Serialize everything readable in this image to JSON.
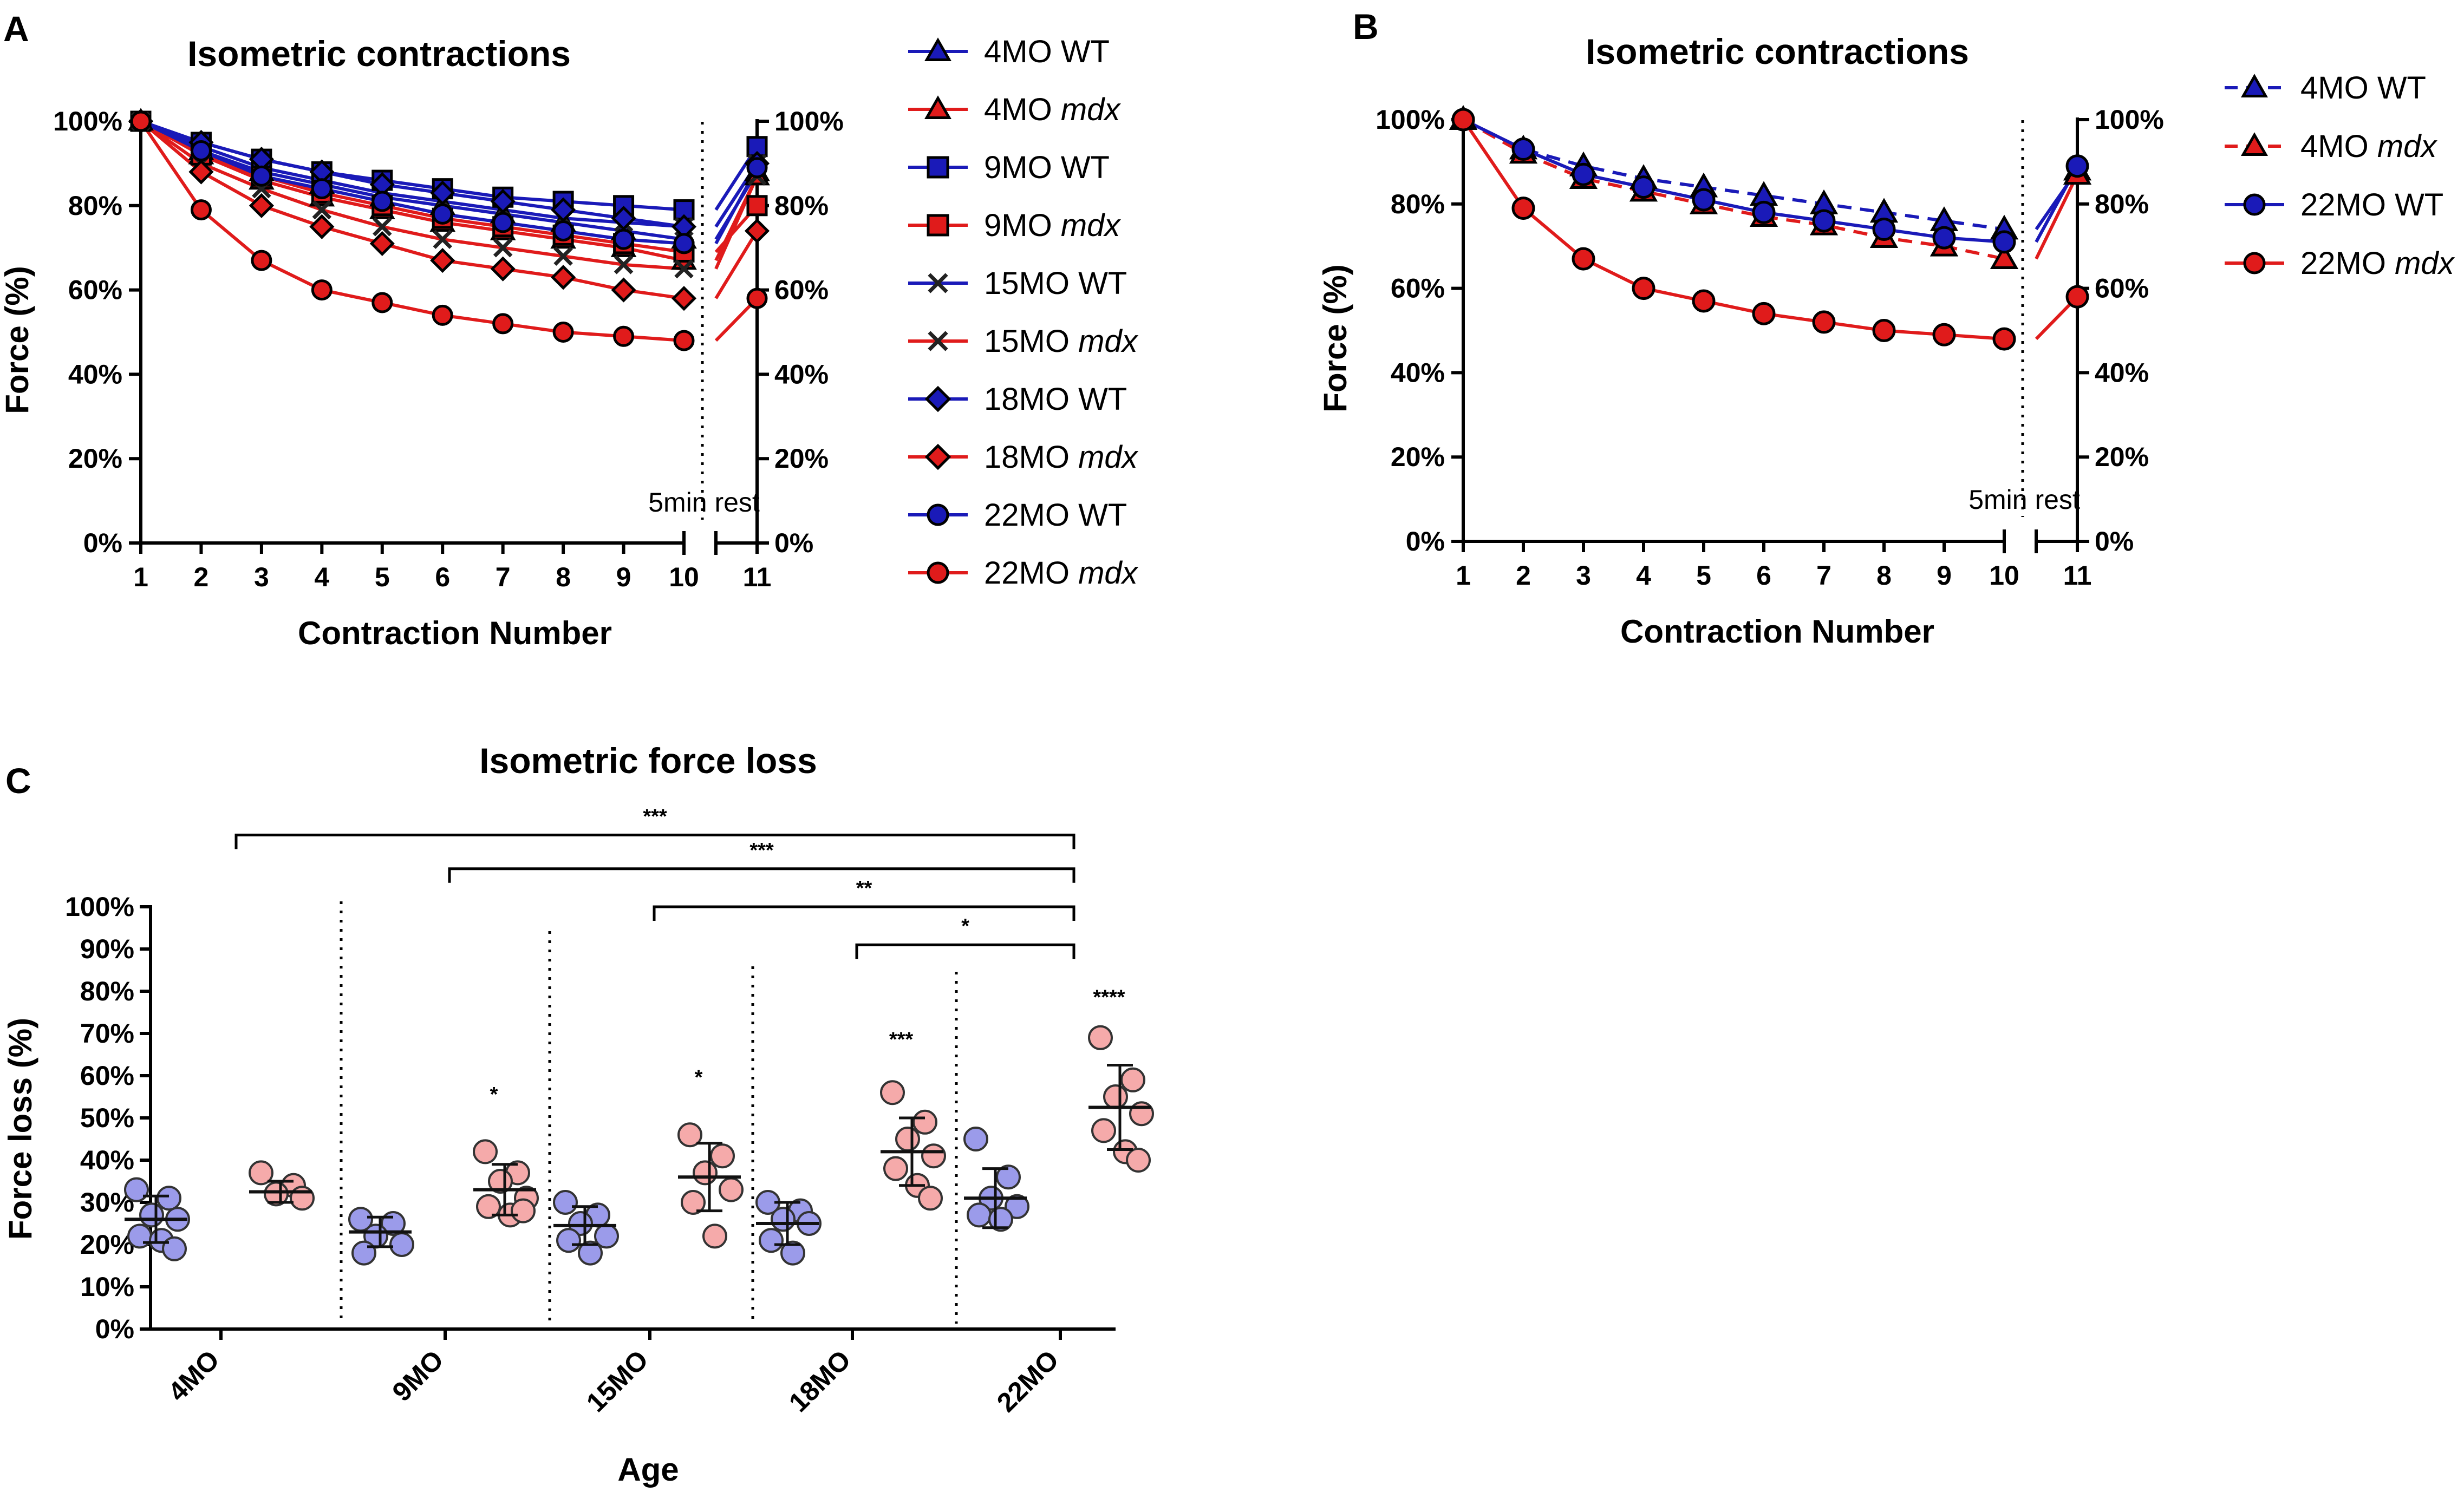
{
  "colors": {
    "wt": "#1a1ab8",
    "mdx": "#e01b1b",
    "wt_point_c": "#9b9bea",
    "mdx_point_c": "#f5aaaa"
  },
  "panel_a": {
    "label": "A",
    "rest_label": "5min rest",
    "legend": [
      {
        "prefix": "4MO ",
        "suffix": "WT"
      },
      {
        "prefix": "4MO ",
        "suffix": "mdx"
      },
      {
        "prefix": "9MO ",
        "suffix": "WT"
      },
      {
        "prefix": "9MO ",
        "suffix": "mdx"
      },
      {
        "prefix": "15MO ",
        "suffix": "WT"
      },
      {
        "prefix": "15MO ",
        "suffix": "mdx"
      },
      {
        "prefix": "18MO ",
        "suffix": "WT"
      },
      {
        "prefix": "18MO ",
        "suffix": "mdx"
      },
      {
        "prefix": "22MO ",
        "suffix": "WT"
      },
      {
        "prefix": "22MO ",
        "suffix": "mdx"
      }
    ]
  },
  "panel_b": {
    "label": "B",
    "rest_label": "5min rest",
    "legend": [
      {
        "prefix": "4MO ",
        "suffix": "WT"
      },
      {
        "prefix": "4MO ",
        "suffix": "mdx"
      },
      {
        "prefix": "22MO ",
        "suffix": "WT"
      },
      {
        "prefix": "22MO ",
        "suffix": "mdx"
      }
    ]
  },
  "panel_c": {
    "label": "C"
  },
  "chart_data": [
    {
      "id": "A",
      "type": "line",
      "title": "Isometric contractions",
      "xlabel": "Contraction Number",
      "ylabel": "Force (%)",
      "x": [
        1,
        2,
        3,
        4,
        5,
        6,
        7,
        8,
        9,
        10,
        11
      ],
      "x_ticks": [
        "1",
        "2",
        "3",
        "4",
        "5",
        "6",
        "7",
        "8",
        "9",
        "10",
        "11"
      ],
      "y_ticks": [
        "0%",
        "20%",
        "40%",
        "60%",
        "80%",
        "100%"
      ],
      "y2_ticks": [
        "0%",
        "20%",
        "40%",
        "60%",
        "80%",
        "100%"
      ],
      "ylim": [
        0,
        100
      ],
      "axis_break_after": 10,
      "series": [
        {
          "name": "4MO WT",
          "group": "wt",
          "marker": "triangle",
          "values": [
            100,
            93,
            88,
            85,
            82,
            80,
            78,
            76,
            74,
            72,
            88
          ]
        },
        {
          "name": "4MO mdx",
          "group": "mdx",
          "marker": "triangle",
          "values": [
            100,
            92,
            86,
            82,
            79,
            76,
            74,
            72,
            70,
            67,
            87
          ]
        },
        {
          "name": "9MO WT",
          "group": "wt",
          "marker": "square",
          "values": [
            100,
            95,
            91,
            88,
            86,
            84,
            82,
            81,
            80,
            79,
            94
          ]
        },
        {
          "name": "9MO mdx",
          "group": "mdx",
          "marker": "square",
          "values": [
            100,
            92,
            87,
            83,
            80,
            77,
            75,
            73,
            71,
            69,
            80
          ]
        },
        {
          "name": "15MO WT",
          "group": "wt",
          "marker": "x",
          "values": [
            100,
            94,
            89,
            86,
            83,
            81,
            79,
            77,
            76,
            75,
            90
          ]
        },
        {
          "name": "15MO mdx",
          "group": "mdx",
          "marker": "x",
          "values": [
            100,
            90,
            84,
            79,
            75,
            72,
            70,
            68,
            66,
            65,
            87
          ]
        },
        {
          "name": "18MO WT",
          "group": "wt",
          "marker": "diamond",
          "values": [
            100,
            95,
            91,
            88,
            85,
            83,
            81,
            79,
            77,
            75,
            90
          ]
        },
        {
          "name": "18MO mdx",
          "group": "mdx",
          "marker": "diamond",
          "values": [
            100,
            88,
            80,
            75,
            71,
            67,
            65,
            63,
            60,
            58,
            74
          ]
        },
        {
          "name": "22MO WT",
          "group": "wt",
          "marker": "circle",
          "values": [
            100,
            93,
            87,
            84,
            81,
            78,
            76,
            74,
            72,
            71,
            89
          ]
        },
        {
          "name": "22MO mdx",
          "group": "mdx",
          "marker": "circle",
          "values": [
            100,
            79,
            67,
            60,
            57,
            54,
            52,
            50,
            49,
            48,
            58
          ]
        }
      ]
    },
    {
      "id": "B",
      "type": "line",
      "title": "Isometric contractions",
      "xlabel": "Contraction Number",
      "ylabel": "Force (%)",
      "x": [
        1,
        2,
        3,
        4,
        5,
        6,
        7,
        8,
        9,
        10,
        11
      ],
      "x_ticks": [
        "1",
        "2",
        "3",
        "4",
        "5",
        "6",
        "7",
        "8",
        "9",
        "10",
        "11"
      ],
      "y_ticks": [
        "0%",
        "20%",
        "40%",
        "60%",
        "80%",
        "100%"
      ],
      "y2_ticks": [
        "0%",
        "20%",
        "40%",
        "60%",
        "80%",
        "100%"
      ],
      "ylim": [
        0,
        100
      ],
      "axis_break_after": 10,
      "series": [
        {
          "name": "4MO WT",
          "group": "wt",
          "marker": "triangle",
          "dashed": true,
          "values": [
            100,
            93,
            89,
            86,
            84,
            82,
            80,
            78,
            76,
            74,
            88
          ]
        },
        {
          "name": "4MO mdx",
          "group": "mdx",
          "marker": "triangle",
          "dashed": true,
          "values": [
            100,
            92,
            86,
            83,
            80,
            77,
            75,
            72,
            70,
            67,
            87
          ]
        },
        {
          "name": "22MO WT",
          "group": "wt",
          "marker": "circle",
          "dashed": false,
          "values": [
            100,
            93,
            87,
            84,
            81,
            78,
            76,
            74,
            72,
            71,
            89
          ]
        },
        {
          "name": "22MO mdx",
          "group": "mdx",
          "marker": "circle",
          "dashed": false,
          "values": [
            100,
            79,
            67,
            60,
            57,
            54,
            52,
            50,
            49,
            48,
            58
          ]
        }
      ]
    },
    {
      "id": "C",
      "type": "scatter",
      "title": "Isometric force loss",
      "xlabel": "Age",
      "ylabel": "Force loss (%)",
      "categories": [
        "4MO",
        "9MO",
        "15MO",
        "18MO",
        "22MO"
      ],
      "y_ticks": [
        "0%",
        "10%",
        "20%",
        "30%",
        "40%",
        "50%",
        "60%",
        "70%",
        "80%",
        "90%",
        "100%"
      ],
      "ylim": [
        0,
        100
      ],
      "groups": [
        {
          "name": "4MO WT",
          "category": "4MO",
          "group": "wt",
          "points": [
            33,
            31,
            27,
            26,
            22,
            21,
            19
          ],
          "mean": 26,
          "sd": 5.5
        },
        {
          "name": "4MO mdx",
          "category": "4MO",
          "group": "mdx",
          "points": [
            37,
            34,
            32,
            31
          ],
          "mean": 32.5,
          "sd": 2.5
        },
        {
          "name": "9MO WT",
          "category": "9MO",
          "group": "wt",
          "points": [
            26,
            25,
            22,
            20,
            18
          ],
          "mean": 23,
          "sd": 3.5
        },
        {
          "name": "9MO mdx",
          "category": "9MO",
          "group": "mdx",
          "points": [
            42,
            37,
            35,
            31,
            29,
            27,
            28
          ],
          "mean": 33,
          "sd": 6
        },
        {
          "name": "15MO WT",
          "category": "15MO",
          "group": "wt",
          "points": [
            30,
            27,
            25,
            22,
            21,
            18
          ],
          "mean": 24.5,
          "sd": 4.5
        },
        {
          "name": "15MO mdx",
          "category": "15MO",
          "group": "mdx",
          "points": [
            46,
            41,
            37,
            33,
            30,
            22
          ],
          "mean": 36,
          "sd": 8
        },
        {
          "name": "18MO WT",
          "category": "18MO",
          "group": "wt",
          "points": [
            30,
            28,
            26,
            25,
            21,
            18
          ],
          "mean": 25,
          "sd": 5
        },
        {
          "name": "18MO mdx",
          "category": "18MO",
          "group": "mdx",
          "points": [
            56,
            49,
            45,
            41,
            38,
            34,
            31
          ],
          "mean": 42,
          "sd": 8
        },
        {
          "name": "22MO WT",
          "category": "22MO",
          "group": "wt",
          "points": [
            45,
            36,
            31,
            29,
            27,
            26
          ],
          "mean": 31,
          "sd": 7
        },
        {
          "name": "22MO mdx",
          "category": "22MO",
          "group": "mdx",
          "points": [
            69,
            59,
            55,
            51,
            47,
            42,
            40
          ],
          "mean": 52.5,
          "sd": 10
        }
      ],
      "group_stars": [
        {
          "category": "9MO",
          "label": "*",
          "y": 54
        },
        {
          "category": "15MO",
          "label": "*",
          "y": 58
        },
        {
          "category": "18MO",
          "label": "***",
          "y": 67
        },
        {
          "category": "22MO",
          "label": "****",
          "y": 77
        }
      ],
      "brackets": [
        {
          "from": "4MO",
          "to": "22MO",
          "label": "***",
          "y": 117
        },
        {
          "from": "9MO",
          "to": "22MO",
          "label": "***",
          "y": 109
        },
        {
          "from": "15MO",
          "to": "22MO",
          "label": "**",
          "y": 100
        },
        {
          "from": "18MO",
          "to": "22MO",
          "label": "*",
          "y": 91
        }
      ]
    }
  ]
}
